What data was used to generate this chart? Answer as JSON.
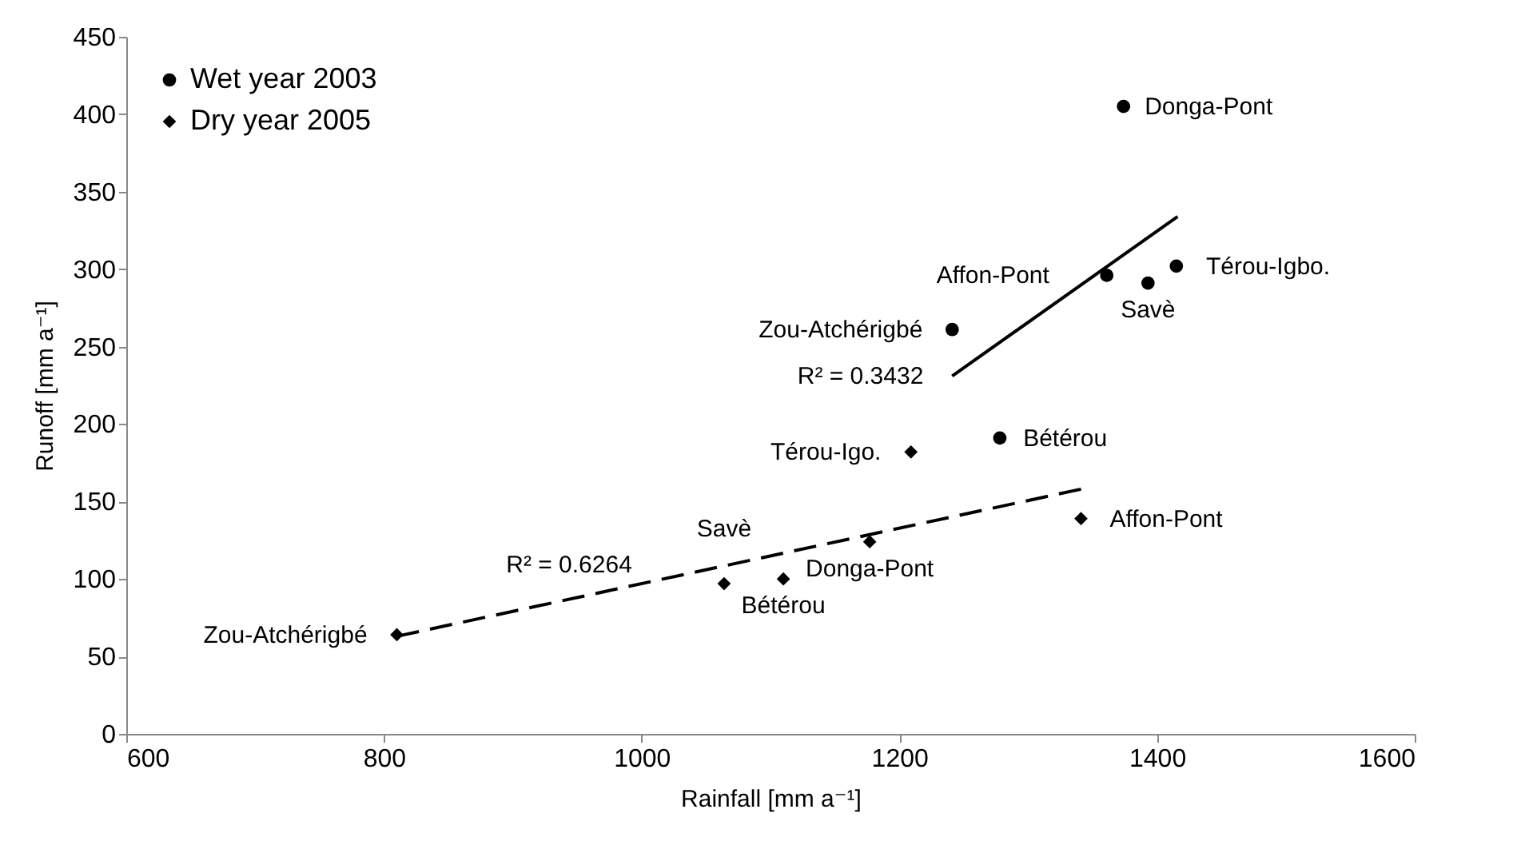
{
  "chart_data": {
    "type": "scatter",
    "xlabel": "Rainfall [mm a⁻¹]",
    "ylabel": "Runoff [mm a⁻¹]",
    "xlim": [
      600,
      1600
    ],
    "xticks": [
      600,
      800,
      1000,
      1200,
      1400,
      1600
    ],
    "ylim": [
      0,
      450
    ],
    "yticks": [
      0,
      50,
      100,
      150,
      200,
      250,
      300,
      350,
      400,
      450
    ],
    "grid": false,
    "legend": "top left",
    "series": [
      {
        "name": "Wet year 2003",
        "color": "#000000",
        "marker": "circle",
        "x": [
          1374,
          1361,
          1393,
          1415,
          1241,
          1278
        ],
        "values": [
          405,
          296,
          291,
          302,
          261,
          191
        ]
      },
      {
        "name": "Dry year 2005",
        "color": "#000000",
        "marker": "diamond",
        "x": [
          810,
          1064,
          1110,
          1177,
          1209,
          1341
        ],
        "values": [
          64,
          97,
          100,
          124,
          182,
          139
        ]
      },
      {
        "type": "line",
        "color": "#000000",
        "line_style": "solid",
        "marker": "none",
        "x": [
          1241,
          1416
        ],
        "values": [
          231,
          334
        ]
      },
      {
        "type": "line",
        "color": "#000000",
        "line_style": "dashed",
        "marker": "none",
        "x": [
          810,
          1341
        ],
        "values": [
          63,
          158
        ]
      }
    ],
    "annotations": [
      {
        "text": "Donga-Pont",
        "x": 1374,
        "y": 405
      },
      {
        "text": "Affon-Pont",
        "x": 1361,
        "y": 296
      },
      {
        "text": "Térou-Igbo.",
        "x": 1415,
        "y": 302
      },
      {
        "text": "Savè",
        "x": 1393,
        "y": 291
      },
      {
        "text": "Zou-Atchérigbé",
        "x": 1241,
        "y": 261
      },
      {
        "text": "Bétérou",
        "x": 1278,
        "y": 191
      },
      {
        "text": "Térou-Igo.",
        "x": 1209,
        "y": 182
      },
      {
        "text": "Affon-Pont",
        "x": 1341,
        "y": 139
      },
      {
        "text": "Donga-Pont",
        "x": 1177,
        "y": 124
      },
      {
        "text": "Bétérou",
        "x": 1110,
        "y": 100
      },
      {
        "text": "Savè",
        "x": 1064,
        "y": 97
      },
      {
        "text": "Zou-Atchérigbé",
        "x": 810,
        "y": 64
      },
      {
        "text": "R² = 0.3432",
        "x": 1241,
        "y": 231
      },
      {
        "text": "R² = 0.6264",
        "x": 1000,
        "y": 97
      }
    ]
  }
}
